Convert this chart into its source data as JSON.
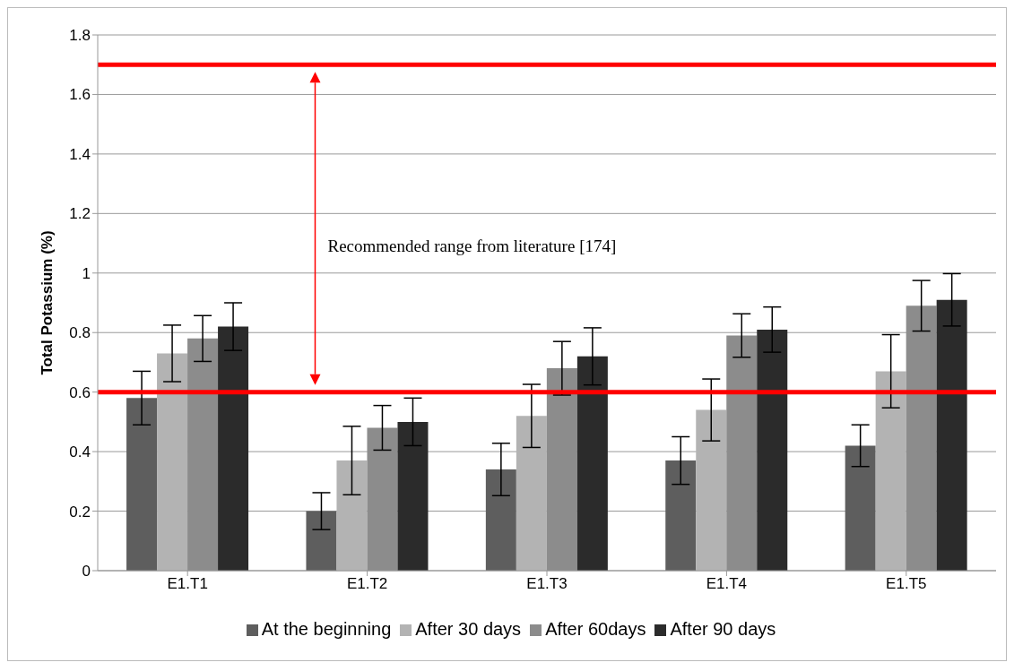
{
  "chart_data": {
    "type": "bar",
    "ylabel": "Total Potassium (%)",
    "categories": [
      "E1.T1",
      "E1.T2",
      "E1.T3",
      "E1.T4",
      "E1.T5"
    ],
    "series": [
      {
        "name": "At the beginning",
        "color": "#5e5e5e",
        "values": [
          0.58,
          0.2,
          0.34,
          0.37,
          0.42
        ],
        "errors": [
          0.09,
          0.062,
          0.088,
          0.08,
          0.07
        ]
      },
      {
        "name": "After 30 days",
        "color": "#b3b3b3",
        "values": [
          0.73,
          0.37,
          0.52,
          0.54,
          0.67
        ],
        "errors": [
          0.095,
          0.115,
          0.106,
          0.104,
          0.123
        ]
      },
      {
        "name": "After 60days",
        "color": "#8c8c8c",
        "values": [
          0.78,
          0.48,
          0.68,
          0.79,
          0.89
        ],
        "errors": [
          0.077,
          0.075,
          0.09,
          0.073,
          0.085
        ]
      },
      {
        "name": "After 90 days",
        "color": "#2b2b2b",
        "values": [
          0.82,
          0.5,
          0.72,
          0.81,
          0.91
        ],
        "errors": [
          0.08,
          0.08,
          0.096,
          0.076,
          0.088
        ]
      }
    ],
    "ylim": [
      0,
      1.8
    ],
    "yticks": [
      0,
      0.2,
      0.4,
      0.6,
      0.8,
      1,
      1.2,
      1.4,
      1.6,
      1.8
    ],
    "grid": "y",
    "legend": "bottom",
    "ref_lines": [
      {
        "axis": "y",
        "value": 0.6,
        "color": "#ff0000"
      },
      {
        "axis": "y",
        "value": 1.7,
        "color": "#ff0000"
      }
    ],
    "annotations": [
      "Recommended range from literature [174]"
    ]
  }
}
